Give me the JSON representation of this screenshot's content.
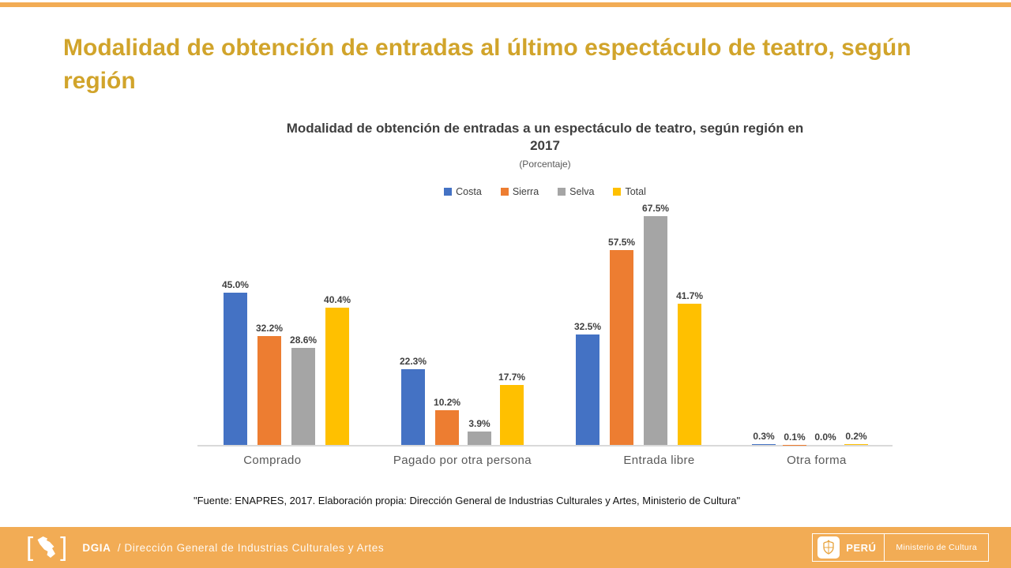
{
  "slide": {
    "title": "Modalidad de obtención de entradas al último espectáculo de teatro, según región",
    "source_note": "\"Fuente: ENAPRES,  2017. Elaboración propia: Dirección General de Industrias Culturales y Artes, Ministerio de Cultura\""
  },
  "chart_data": {
    "type": "bar",
    "title": "Modalidad de obtención de entradas a un espectáculo de teatro, según región en 2017",
    "subtitle": "(Porcentaje)",
    "categories": [
      "Comprado",
      "Pagado por otra persona",
      "Entrada libre",
      "Otra forma"
    ],
    "series": [
      {
        "name": "Costa",
        "color": "#4472C4",
        "values": [
          45.0,
          22.3,
          32.5,
          0.3
        ]
      },
      {
        "name": "Sierra",
        "color": "#ED7D31",
        "values": [
          32.2,
          10.2,
          57.5,
          0.1
        ]
      },
      {
        "name": "Selva",
        "color": "#A5A5A5",
        "values": [
          28.6,
          3.9,
          67.5,
          0.0
        ]
      },
      {
        "name": "Total",
        "color": "#FFC000",
        "values": [
          40.4,
          17.7,
          41.7,
          0.2
        ]
      }
    ],
    "value_suffix": "%",
    "ylim": [
      0,
      70
    ],
    "grid": false,
    "legend_position": "top",
    "xlabel": "",
    "ylabel": ""
  },
  "footer": {
    "org_abbr": "DGIA",
    "org_name": "/ Dirección General de Industrias Culturales y Artes",
    "peru_label": "PERÚ",
    "ministry_label": "Ministerio de Cultura"
  },
  "colors": {
    "accent_orange": "#F2AC55",
    "title_gold": "#D1A42B",
    "chart_text": "#3F3F3F",
    "axis_line": "#D9D9D9"
  }
}
